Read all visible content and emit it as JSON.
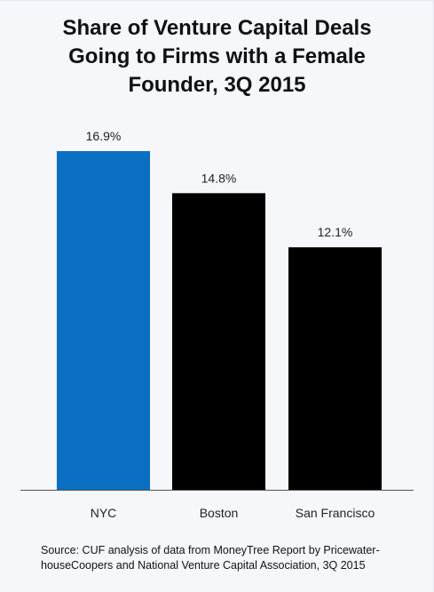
{
  "chart_data": {
    "type": "bar",
    "title_lines": [
      "Share of Venture Capital Deals",
      "Going to Firms with a Female",
      "Founder, 3Q 2015"
    ],
    "categories": [
      "NYC",
      "Boston",
      "San Francisco"
    ],
    "values": [
      16.9,
      14.8,
      12.1
    ],
    "value_labels": [
      "16.9%",
      "14.8%",
      "12.1%"
    ],
    "bar_colors": [
      "#0a6fc2",
      "#000000",
      "#000000"
    ],
    "ylim": [
      0,
      16.9
    ],
    "grid": false,
    "legend": "none",
    "xlabel": "",
    "ylabel": ""
  },
  "source": {
    "lines": [
      "Source: CUF analysis of data from MoneyTree Report by Pricewater-",
      "houseCoopers and National Venture Capital Association, 3Q 2015"
    ]
  },
  "colors": {
    "background": "#f5f7fb",
    "accent": "#0a6fc2",
    "axis": "#555555"
  }
}
